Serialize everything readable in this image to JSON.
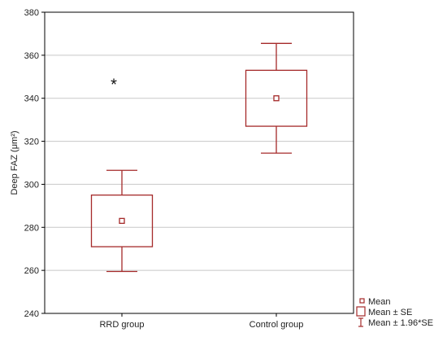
{
  "chart_data": {
    "type": "box",
    "ylabel": "Deep FAZ (μm²)",
    "ylim": [
      240,
      380
    ],
    "yticks": [
      240,
      260,
      280,
      300,
      320,
      340,
      360,
      380
    ],
    "grid": true,
    "legend_position": "bottom-right",
    "categories": [
      "RRD group",
      "Control group"
    ],
    "groups": [
      {
        "category": "RRD group",
        "mean": 283,
        "se_low": 271,
        "se_high": 295,
        "ci_low": 259.5,
        "ci_high": 306.5
      },
      {
        "category": "Control group",
        "mean": 340,
        "se_low": 327,
        "se_high": 353,
        "ci_low": 314.5,
        "ci_high": 365.5
      }
    ],
    "annotations": [
      {
        "text": "*",
        "category": "RRD group",
        "y": 348
      }
    ],
    "legend": [
      {
        "symbol": "mean-marker",
        "label": "Mean"
      },
      {
        "symbol": "box",
        "label": "Mean ± SE"
      },
      {
        "symbol": "whisker",
        "label": "Mean ± 1.96*SE"
      }
    ],
    "colors": {
      "series": "#a52a2a",
      "grid": "#c8c8c8",
      "axis": "#000000"
    }
  }
}
